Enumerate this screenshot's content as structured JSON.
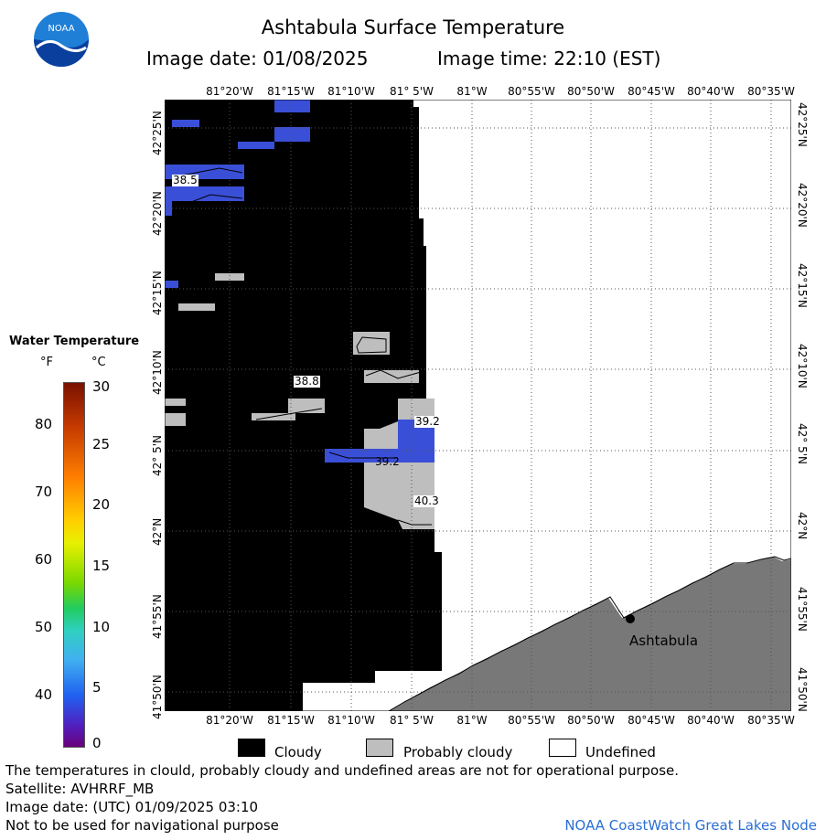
{
  "header": {
    "title": "Ashtabula Surface Temperature",
    "image_date": "Image date: 01/08/2025",
    "image_time": "Image time: 22:10 (EST)"
  },
  "logo": {
    "text": "NOAA"
  },
  "map": {
    "lon_labels": [
      "81°20'W",
      "81°15'W",
      "81°10'W",
      "81° 5'W",
      "81°W",
      "80°55'W",
      "80°50'W",
      "80°45'W",
      "80°40'W",
      "80°35'W"
    ],
    "lat_labels": [
      "42°25'N",
      "42°20'N",
      "42°15'N",
      "42°10'N",
      "42° 5'N",
      "42°N",
      "41°55'N",
      "41°50'N"
    ],
    "city": "Ashtabula",
    "temperature_labels": [
      "38.5",
      "38.8",
      "39.2",
      "39.2",
      "40.3"
    ],
    "colors": {
      "cloudy": "#000000",
      "probably_cloudy": "#bebebe",
      "undefined": "#ffffff",
      "land": "#787878",
      "water_cold": "#3a4fd8"
    }
  },
  "legend": {
    "title": "Water Temperature",
    "unit_f": "°F",
    "unit_c": "°C",
    "f_ticks": [
      "80",
      "70",
      "60",
      "50",
      "40"
    ],
    "c_ticks": [
      "30",
      "25",
      "20",
      "15",
      "10",
      "5",
      "0"
    ]
  },
  "bottom_legend": {
    "cloudy": "Cloudy",
    "probably_cloudy": "Probably cloudy",
    "undefined": "Undefined"
  },
  "footer": {
    "disclaimer": "The temperatures in clould, probably cloudy and undefined areas are not for operational purpose.",
    "satellite": "Satellite: AVHRRF_MB",
    "utc_date": "Image date: (UTC) 01/09/2025  03:10",
    "navigation": "Not to be used for navigational purpose",
    "credit": "NOAA CoastWatch Great Lakes Node"
  }
}
